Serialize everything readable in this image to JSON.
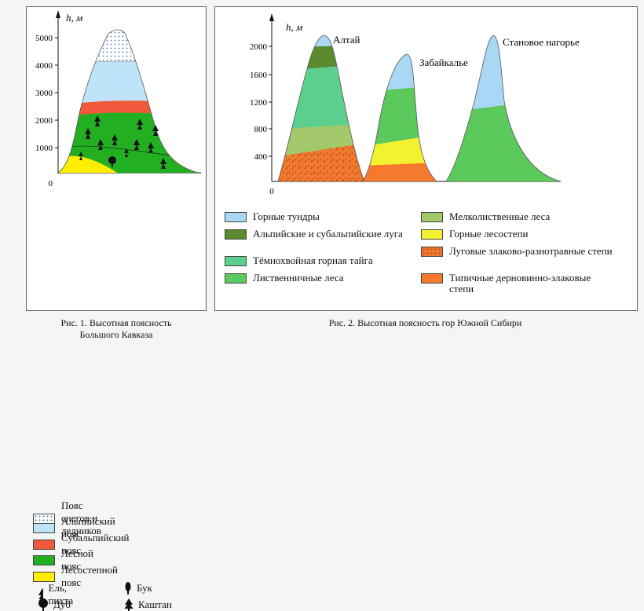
{
  "fig1": {
    "axis_label": "h, м",
    "origin": "0",
    "ticks": [
      "5000",
      "4000",
      "3000",
      "2000",
      "1000"
    ],
    "legend": [
      {
        "label": "Пояс снегов и ледников",
        "color": "#ffffff"
      },
      {
        "label": "Альпийский пояс",
        "color": "#bfe3f8"
      },
      {
        "label": "Субальпийский пояс",
        "color": "#f05a3a"
      },
      {
        "label": "Лесной пояс",
        "color": "#22b022"
      },
      {
        "label": "Лесостепной пояс",
        "color": "#ffee00"
      }
    ],
    "trees": [
      {
        "label": "Ель, пихта",
        "icon": "spruce-icon"
      },
      {
        "label": "Бук",
        "icon": "beech-icon"
      },
      {
        "label": "Дуб",
        "icon": "oak-icon"
      },
      {
        "label": "Каштан",
        "icon": "chestnut-icon"
      }
    ],
    "caption_line1": "Рис. 1. Высотная поясность",
    "caption_line2": "Большого Кавказа"
  },
  "fig2": {
    "axis_label": "h, м",
    "origin": "0",
    "ticks": [
      "2000",
      "1600",
      "1200",
      "800",
      "400"
    ],
    "peaks": [
      "Алтай",
      "Забайкалье",
      "Становое нагорье"
    ],
    "legend_left": [
      {
        "label": "Горные тундры",
        "color": "#a9d8f5"
      },
      {
        "label": "Альпийские и субальпийские луга",
        "color": "#5c8a2e"
      },
      {
        "label": "Тёмнохвойная горная тайга",
        "color": "#5ccf8e"
      },
      {
        "label": "Лиственничные леса",
        "color": "#5cc95c"
      }
    ],
    "legend_right": [
      {
        "label": "Мелколиственные леса",
        "color": "#a3c96a"
      },
      {
        "label": "Горные лесостепи",
        "color": "#f2f230"
      },
      {
        "label": "Луговые злаково-разнотравные степи",
        "color": "#f07a2e"
      },
      {
        "label": "Типичные дерновинно-злаковые степи",
        "color": "#f57a2e"
      }
    ],
    "caption": "Рис. 2. Высотная поясность гор Южной Сибири"
  }
}
